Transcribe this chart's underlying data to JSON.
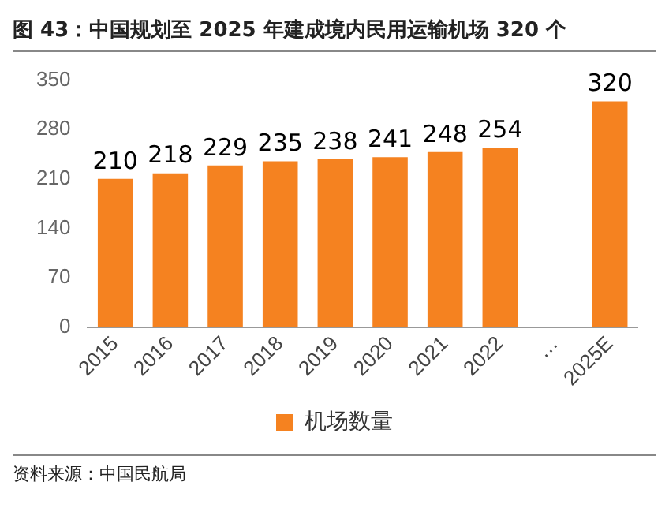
{
  "chart_data": {
    "type": "bar",
    "title": "图 43：中国规划至 2025 年建成境内民用运输机场 320 个",
    "categories": [
      "2015",
      "2016",
      "2017",
      "2018",
      "2019",
      "2020",
      "2021",
      "2022",
      "…",
      "2025E"
    ],
    "series": [
      {
        "name": "机场数量",
        "color": "#f58220",
        "values": [
          210,
          218,
          229,
          235,
          238,
          241,
          248,
          254,
          null,
          320
        ]
      }
    ],
    "ylim": [
      0,
      350
    ],
    "yticks": [
      0,
      70,
      140,
      210,
      280,
      350
    ],
    "grid": false,
    "legend": "bottom",
    "data_labels": true,
    "annotations": [
      "资料来源：中国民航局"
    ]
  }
}
